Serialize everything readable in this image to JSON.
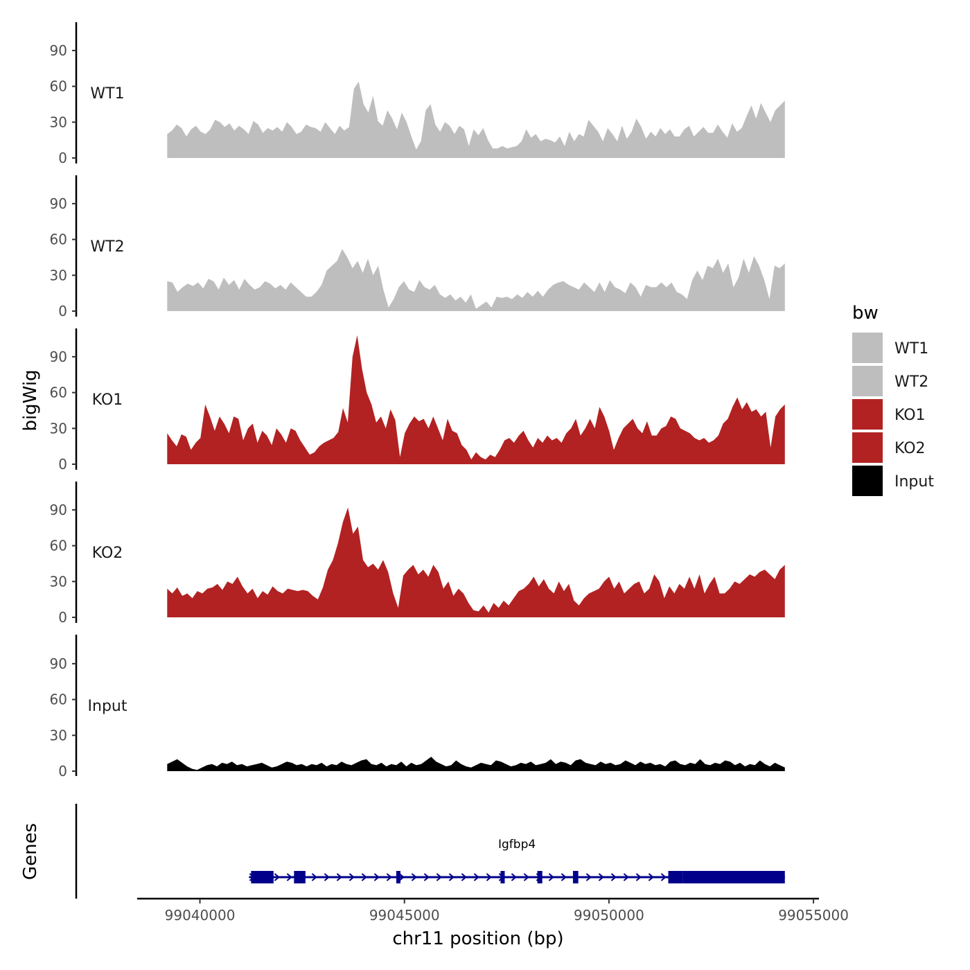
{
  "chart_data": {
    "type": "area",
    "title": "",
    "ylabel": "bigWig",
    "xlabel": "chr11 position (bp)",
    "ylim": [
      0,
      112
    ],
    "yticks": [
      0,
      30,
      60,
      90
    ],
    "ytick_labels": [
      "0",
      "30",
      "60",
      "90"
    ],
    "xlim": [
      99038500,
      99055100
    ],
    "xticks": [
      99040000,
      99045000,
      99050000,
      99055000
    ],
    "xtick_labels": [
      "99040000",
      "99045000",
      "99050000",
      "99055000"
    ],
    "signal_x_range": [
      99039200,
      99054300
    ],
    "gene_track_title": "Genes",
    "legend": {
      "title": "bw",
      "position": "right",
      "entries": [
        {
          "label": "WT1",
          "color": "#bebebe"
        },
        {
          "label": "WT2",
          "color": "#bebebe"
        },
        {
          "label": "KO1",
          "color": "#b22222"
        },
        {
          "label": "KO2",
          "color": "#b22222"
        },
        {
          "label": "Input",
          "color": "#000000"
        }
      ]
    },
    "series": [
      {
        "name": "WT1",
        "label": "WT1",
        "color": "#bebebe",
        "values": [
          20,
          23,
          28,
          25,
          18,
          24,
          27,
          22,
          20,
          24,
          32,
          30,
          26,
          29,
          23,
          27,
          24,
          20,
          31,
          28,
          21,
          25,
          23,
          26,
          22,
          30,
          26,
          20,
          22,
          28,
          26,
          25,
          22,
          30,
          25,
          20,
          27,
          23,
          26,
          58,
          64,
          45,
          38,
          52,
          31,
          27,
          40,
          33,
          24,
          38,
          30,
          18,
          7,
          14,
          40,
          45,
          28,
          22,
          30,
          27,
          20,
          27,
          24,
          10,
          24,
          19,
          25,
          15,
          8,
          8,
          10,
          8,
          9,
          10,
          14,
          24,
          17,
          20,
          14,
          16,
          15,
          13,
          18,
          10,
          22,
          14,
          20,
          18,
          32,
          27,
          22,
          14,
          25,
          20,
          14,
          27,
          16,
          22,
          33,
          26,
          16,
          22,
          18,
          25,
          20,
          24,
          18,
          18,
          24,
          27,
          18,
          22,
          26,
          21,
          21,
          28,
          22,
          17,
          29,
          22,
          25,
          35,
          44,
          33,
          46,
          38,
          30,
          40,
          44,
          48
        ]
      },
      {
        "name": "WT2",
        "label": "WT2",
        "color": "#bebebe",
        "values": [
          25,
          24,
          16,
          20,
          23,
          21,
          24,
          19,
          27,
          25,
          18,
          28,
          22,
          26,
          18,
          27,
          22,
          18,
          20,
          25,
          23,
          19,
          22,
          18,
          24,
          20,
          16,
          12,
          12,
          16,
          22,
          34,
          38,
          42,
          52,
          45,
          36,
          42,
          32,
          44,
          30,
          38,
          18,
          3,
          10,
          20,
          25,
          18,
          16,
          26,
          20,
          18,
          22,
          14,
          11,
          14,
          9,
          12,
          7,
          14,
          2,
          5,
          8,
          3,
          12,
          11,
          12,
          10,
          14,
          11,
          16,
          12,
          17,
          12,
          18,
          22,
          24,
          25,
          22,
          20,
          18,
          24,
          20,
          16,
          24,
          16,
          26,
          20,
          18,
          15,
          24,
          20,
          12,
          22,
          20,
          20,
          24,
          20,
          24,
          16,
          14,
          10,
          26,
          34,
          26,
          38,
          36,
          44,
          32,
          40,
          20,
          28,
          44,
          32,
          46,
          38,
          26,
          10,
          38,
          36,
          40
        ]
      },
      {
        "name": "KO1",
        "label": "KO1",
        "color": "#b22222",
        "values": [
          26,
          20,
          15,
          25,
          23,
          12,
          18,
          22,
          50,
          40,
          28,
          40,
          34,
          26,
          40,
          38,
          20,
          30,
          34,
          18,
          28,
          24,
          16,
          30,
          25,
          18,
          30,
          28,
          20,
          14,
          8,
          10,
          15,
          18,
          20,
          22,
          27,
          47,
          35,
          90,
          108,
          80,
          60,
          50,
          35,
          40,
          30,
          46,
          37,
          6,
          26,
          34,
          40,
          36,
          38,
          30,
          40,
          30,
          20,
          38,
          28,
          26,
          16,
          12,
          4,
          10,
          6,
          4,
          8,
          6,
          12,
          20,
          22,
          18,
          24,
          28,
          20,
          14,
          22,
          18,
          24,
          20,
          22,
          18,
          26,
          30,
          38,
          24,
          30,
          38,
          30,
          48,
          40,
          28,
          12,
          22,
          30,
          34,
          38,
          30,
          26,
          36,
          24,
          24,
          30,
          32,
          40,
          38,
          30,
          28,
          26,
          22,
          20,
          22,
          18,
          20,
          24,
          34,
          38,
          48,
          56,
          46,
          52,
          44,
          46,
          40,
          44,
          14,
          40,
          46,
          50
        ]
      },
      {
        "name": "KO2",
        "label": "KO2",
        "color": "#b22222",
        "values": [
          24,
          20,
          25,
          18,
          20,
          16,
          22,
          20,
          24,
          25,
          28,
          23,
          30,
          28,
          34,
          26,
          20,
          24,
          16,
          22,
          19,
          26,
          22,
          20,
          24,
          23,
          22,
          23,
          22,
          18,
          15,
          25,
          40,
          48,
          62,
          80,
          92,
          70,
          76,
          48,
          42,
          45,
          40,
          48,
          38,
          20,
          8,
          35,
          40,
          44,
          36,
          40,
          34,
          44,
          38,
          24,
          30,
          18,
          24,
          20,
          12,
          6,
          5,
          10,
          4,
          12,
          8,
          14,
          10,
          16,
          22,
          24,
          28,
          34,
          26,
          32,
          24,
          20,
          30,
          22,
          28,
          14,
          10,
          16,
          20,
          22,
          24,
          30,
          34,
          24,
          30,
          20,
          24,
          28,
          30,
          20,
          24,
          36,
          30,
          16,
          26,
          20,
          28,
          24,
          34,
          24,
          36,
          20,
          28,
          34,
          20,
          20,
          24,
          30,
          28,
          32,
          36,
          34,
          38,
          40,
          36,
          32,
          40,
          44
        ]
      },
      {
        "name": "Input",
        "label": "Input",
        "color": "#000000",
        "values": [
          6,
          8,
          10,
          7,
          4,
          2,
          1,
          3,
          5,
          6,
          4,
          7,
          6,
          8,
          5,
          6,
          4,
          5,
          6,
          7,
          5,
          3,
          4,
          6,
          8,
          7,
          5,
          6,
          4,
          6,
          5,
          7,
          4,
          6,
          5,
          8,
          6,
          5,
          7,
          9,
          10,
          6,
          5,
          7,
          4,
          6,
          5,
          8,
          4,
          7,
          5,
          6,
          9,
          12,
          8,
          6,
          4,
          5,
          9,
          6,
          4,
          3,
          5,
          7,
          6,
          5,
          9,
          8,
          6,
          4,
          5,
          7,
          6,
          8,
          5,
          6,
          7,
          10,
          6,
          8,
          7,
          5,
          9,
          10,
          7,
          6,
          5,
          8,
          6,
          7,
          5,
          6,
          9,
          7,
          5,
          8,
          6,
          7,
          5,
          6,
          4,
          8,
          9,
          6,
          5,
          7,
          6,
          10,
          6,
          5,
          7,
          6,
          9,
          8,
          5,
          7,
          4,
          6,
          5,
          9,
          6,
          4,
          7,
          5,
          3
        ]
      }
    ],
    "genes": [
      {
        "name": "Igfbp4",
        "strand": "+",
        "tx_start": 99041200,
        "tx_end": 99054300,
        "exons": [
          {
            "start": 99041250,
            "end": 99041800,
            "utr": false
          },
          {
            "start": 99042300,
            "end": 99042580,
            "utr": false
          },
          {
            "start": 99044800,
            "end": 99044900,
            "utr": false
          },
          {
            "start": 99047350,
            "end": 99047420,
            "utr": false
          },
          {
            "start": 99048250,
            "end": 99048370,
            "utr": false
          },
          {
            "start": 99049120,
            "end": 99049250,
            "utr": false
          },
          {
            "start": 99051450,
            "end": 99051800,
            "utr": false
          },
          {
            "start": 99051800,
            "end": 99054300,
            "utr": true
          }
        ]
      }
    ]
  }
}
